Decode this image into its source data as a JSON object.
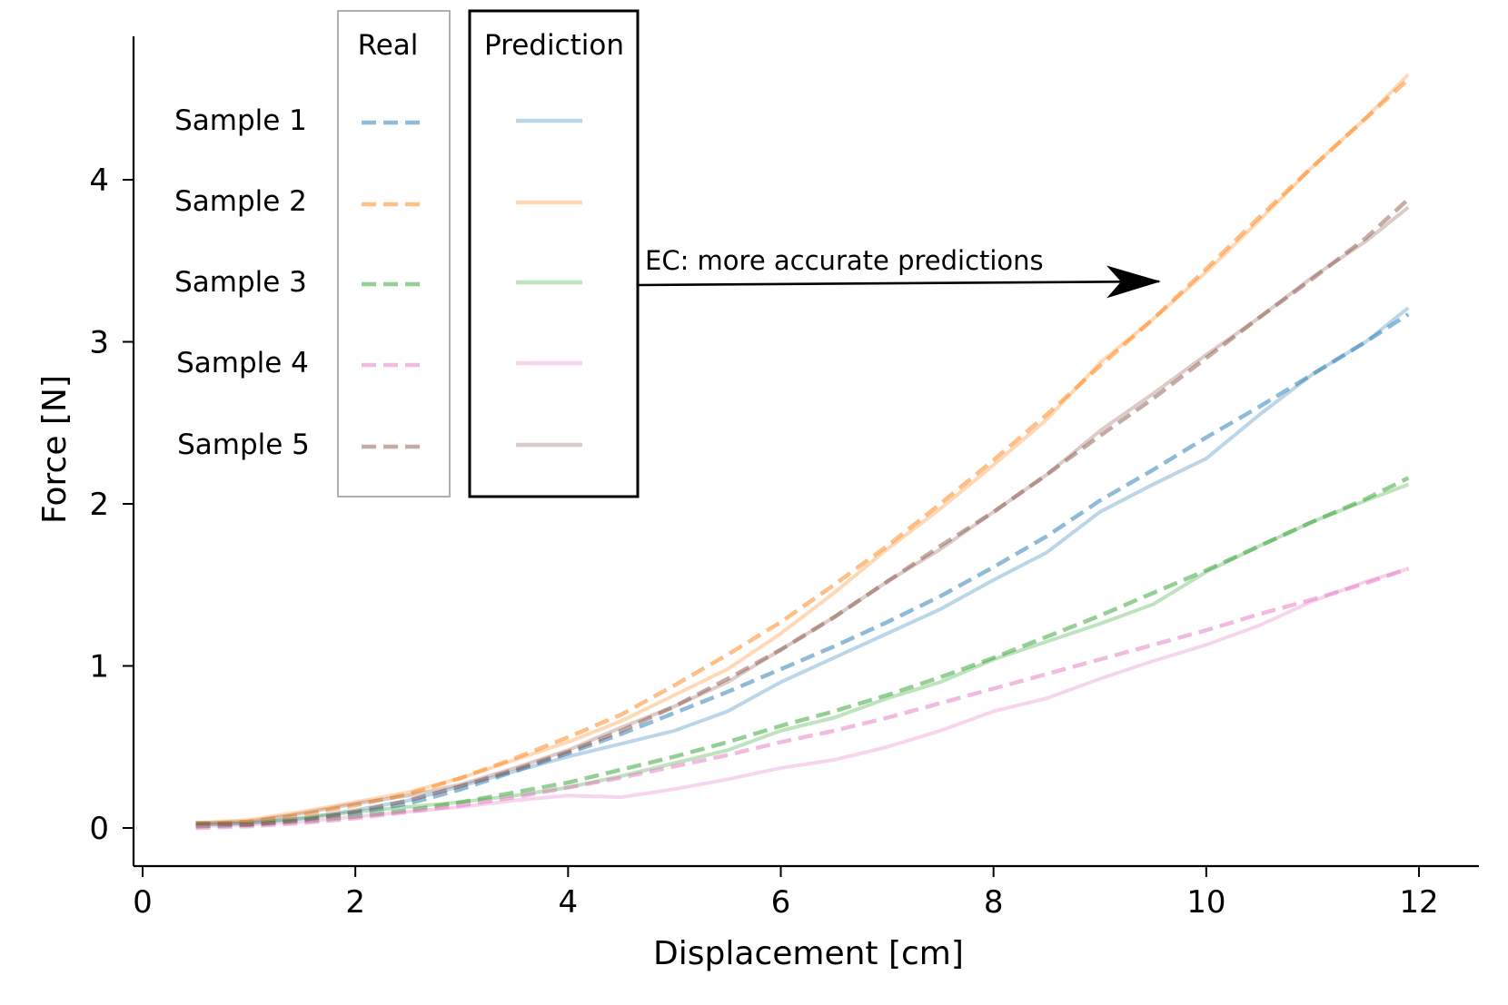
{
  "chart_data": {
    "type": "line",
    "xlabel": "Displacement [cm]",
    "ylabel": "Force [N]",
    "xlim": [
      -0.1,
      12.6
    ],
    "ylim": [
      -0.22,
      4.9
    ],
    "xticks": [
      "0",
      "2",
      "4",
      "6",
      "8",
      "10",
      "12"
    ],
    "yticks": [
      "0",
      "1",
      "2",
      "3",
      "4"
    ],
    "legend": {
      "real_header": "Real",
      "prediction_header": "Prediction",
      "labels": [
        "Sample 1",
        "Sample 2",
        "Sample 3",
        "Sample 4",
        "Sample 5"
      ]
    },
    "annotation": "EC: more accurate predictions",
    "colors": [
      "#1f77b4",
      "#ff7f0e",
      "#2ca02c",
      "#e377c2",
      "#8c564b"
    ],
    "series": [
      {
        "name": "Sample 1",
        "real": {
          "x": [
            0.5,
            1,
            1.5,
            2,
            2.5,
            3,
            3.5,
            4,
            4.5,
            5,
            5.5,
            6,
            6.5,
            7,
            7.5,
            8,
            8.5,
            9,
            9.5,
            10,
            10.5,
            11,
            11.5,
            11.9
          ],
          "y": [
            0.01,
            0.02,
            0.05,
            0.09,
            0.15,
            0.24,
            0.35,
            0.46,
            0.58,
            0.71,
            0.84,
            0.98,
            1.12,
            1.27,
            1.43,
            1.61,
            1.8,
            2.02,
            2.21,
            2.41,
            2.6,
            2.8,
            3.0,
            3.17
          ]
        },
        "pred": {
          "x": [
            0.5,
            1,
            1.5,
            2,
            2.5,
            3,
            3.5,
            4,
            4.5,
            5,
            5.5,
            6,
            6.5,
            7,
            7.5,
            8,
            8.5,
            9,
            9.5,
            10,
            10.5,
            11,
            11.5,
            11.9
          ],
          "y": [
            0.02,
            0.03,
            0.06,
            0.11,
            0.17,
            0.26,
            0.35,
            0.44,
            0.52,
            0.6,
            0.72,
            0.9,
            1.05,
            1.2,
            1.35,
            1.53,
            1.7,
            1.95,
            2.12,
            2.28,
            2.55,
            2.8,
            3.0,
            3.21
          ]
        }
      },
      {
        "name": "Sample 2",
        "real": {
          "x": [
            0.5,
            1,
            1.5,
            2,
            2.5,
            3,
            3.5,
            4,
            4.5,
            5,
            5.5,
            6,
            6.5,
            7,
            7.5,
            8,
            8.5,
            9,
            9.5,
            10,
            10.5,
            11,
            11.5,
            11.9
          ],
          "y": [
            0.02,
            0.04,
            0.08,
            0.14,
            0.21,
            0.31,
            0.43,
            0.56,
            0.7,
            0.88,
            1.07,
            1.27,
            1.5,
            1.74,
            2.0,
            2.27,
            2.55,
            2.85,
            3.14,
            3.45,
            3.77,
            4.08,
            4.38,
            4.62
          ]
        },
        "pred": {
          "x": [
            0.5,
            1,
            1.5,
            2,
            2.5,
            3,
            3.5,
            4,
            4.5,
            5,
            5.5,
            6,
            6.5,
            7,
            7.5,
            8,
            8.5,
            9,
            9.5,
            10,
            10.5,
            11,
            11.5,
            11.9
          ],
          "y": [
            0.03,
            0.05,
            0.1,
            0.16,
            0.22,
            0.31,
            0.42,
            0.53,
            0.66,
            0.82,
            0.98,
            1.2,
            1.45,
            1.72,
            1.97,
            2.24,
            2.52,
            2.87,
            3.14,
            3.43,
            3.75,
            4.08,
            4.38,
            4.65
          ]
        }
      },
      {
        "name": "Sample 3",
        "real": {
          "x": [
            0.5,
            1,
            1.5,
            2,
            2.5,
            3,
            3.5,
            4,
            4.5,
            5,
            5.5,
            6,
            6.5,
            7,
            7.5,
            8,
            8.5,
            9,
            9.5,
            10,
            10.5,
            11,
            11.5,
            11.9
          ],
          "y": [
            0.01,
            0.02,
            0.04,
            0.07,
            0.11,
            0.16,
            0.22,
            0.28,
            0.36,
            0.44,
            0.53,
            0.63,
            0.72,
            0.82,
            0.93,
            1.05,
            1.18,
            1.31,
            1.45,
            1.59,
            1.74,
            1.89,
            2.03,
            2.16
          ]
        },
        "pred": {
          "x": [
            0.5,
            1,
            1.5,
            2,
            2.5,
            3,
            3.5,
            4,
            4.5,
            5,
            5.5,
            6,
            6.5,
            7,
            7.5,
            8,
            8.5,
            9,
            9.5,
            10,
            10.5,
            11,
            11.5,
            11.9
          ],
          "y": [
            0.02,
            0.03,
            0.06,
            0.1,
            0.13,
            0.16,
            0.2,
            0.25,
            0.32,
            0.4,
            0.48,
            0.6,
            0.68,
            0.8,
            0.9,
            1.04,
            1.15,
            1.26,
            1.38,
            1.58,
            1.74,
            1.89,
            2.02,
            2.12
          ]
        }
      },
      {
        "name": "Sample 4",
        "real": {
          "x": [
            0.5,
            1,
            1.5,
            2,
            2.5,
            3,
            3.5,
            4,
            4.5,
            5,
            5.5,
            6,
            6.5,
            7,
            7.5,
            8,
            8.5,
            9,
            9.5,
            10,
            10.5,
            11,
            11.5,
            11.9
          ],
          "y": [
            0.0,
            0.01,
            0.03,
            0.06,
            0.1,
            0.14,
            0.19,
            0.25,
            0.31,
            0.38,
            0.45,
            0.53,
            0.6,
            0.68,
            0.77,
            0.86,
            0.95,
            1.04,
            1.13,
            1.22,
            1.32,
            1.41,
            1.51,
            1.6
          ]
        },
        "pred": {
          "x": [
            0.5,
            1,
            1.5,
            2,
            2.5,
            3,
            3.5,
            4,
            4.5,
            5,
            5.5,
            6,
            6.5,
            7,
            7.5,
            8,
            8.5,
            9,
            9.5,
            10,
            10.5,
            11,
            11.5,
            11.9
          ],
          "y": [
            0.01,
            0.02,
            0.04,
            0.07,
            0.1,
            0.13,
            0.17,
            0.2,
            0.19,
            0.24,
            0.3,
            0.37,
            0.42,
            0.5,
            0.6,
            0.72,
            0.8,
            0.92,
            1.03,
            1.13,
            1.25,
            1.4,
            1.52,
            1.6
          ]
        }
      },
      {
        "name": "Sample 5",
        "real": {
          "x": [
            0.5,
            1,
            1.5,
            2,
            2.5,
            3,
            3.5,
            4,
            4.5,
            5,
            5.5,
            6,
            6.5,
            7,
            7.5,
            8,
            8.5,
            9,
            9.5,
            10,
            10.5,
            11,
            11.5,
            11.9
          ],
          "y": [
            0.03,
            0.02,
            0.05,
            0.1,
            0.17,
            0.26,
            0.36,
            0.47,
            0.6,
            0.75,
            0.92,
            1.1,
            1.3,
            1.52,
            1.74,
            1.95,
            2.18,
            2.42,
            2.65,
            2.9,
            3.15,
            3.39,
            3.64,
            3.88
          ]
        },
        "pred": {
          "x": [
            0.5,
            1,
            1.5,
            2,
            2.5,
            3,
            3.5,
            4,
            4.5,
            5,
            5.5,
            6,
            6.5,
            7,
            7.5,
            8,
            8.5,
            9,
            9.5,
            10,
            10.5,
            11,
            11.5,
            11.9
          ],
          "y": [
            0.03,
            0.04,
            0.09,
            0.15,
            0.2,
            0.27,
            0.37,
            0.48,
            0.62,
            0.75,
            0.9,
            1.1,
            1.3,
            1.52,
            1.72,
            1.95,
            2.18,
            2.45,
            2.68,
            2.92,
            3.15,
            3.4,
            3.62,
            3.83
          ]
        }
      }
    ]
  }
}
